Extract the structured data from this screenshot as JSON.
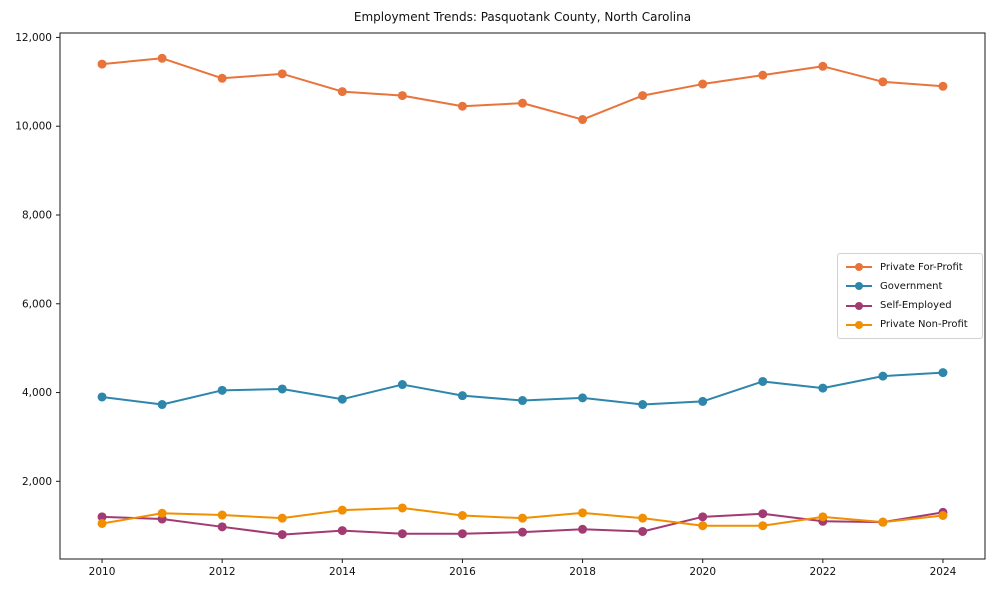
{
  "title": "Employment Trends: Pasquotank County, North Carolina",
  "chart_data": {
    "type": "line",
    "title": "Employment Trends: Pasquotank County, North Carolina",
    "x": [
      2010,
      2011,
      2012,
      2013,
      2014,
      2015,
      2016,
      2017,
      2018,
      2019,
      2020,
      2021,
      2022,
      2023,
      2024
    ],
    "series": [
      {
        "name": "Private For-Profit",
        "color": "#E8743C",
        "values": [
          11400,
          11530,
          11080,
          11180,
          10780,
          10690,
          10450,
          10520,
          10150,
          10690,
          10950,
          11150,
          11350,
          11000,
          10900
        ]
      },
      {
        "name": "Government",
        "color": "#2E86AB",
        "values": [
          3900,
          3730,
          4050,
          4080,
          3850,
          4180,
          3930,
          3820,
          3880,
          3730,
          3800,
          4250,
          4100,
          4370,
          4450
        ]
      },
      {
        "name": "Self-Employed",
        "color": "#A23B72",
        "values": [
          1200,
          1150,
          975,
          800,
          890,
          820,
          820,
          855,
          920,
          870,
          1200,
          1270,
          1100,
          1080,
          1300
        ]
      },
      {
        "name": "Private Non-Profit",
        "color": "#F18F01",
        "values": [
          1050,
          1280,
          1240,
          1170,
          1350,
          1400,
          1230,
          1170,
          1290,
          1170,
          1000,
          1000,
          1200,
          1080,
          1230
        ]
      }
    ],
    "xlabel": "",
    "ylabel": "",
    "xlim": [
      2009.3,
      2024.7
    ],
    "ylim": [
      250,
      12100
    ],
    "xticks": {
      "values": [
        2010,
        2012,
        2014,
        2016,
        2018,
        2020,
        2022,
        2024
      ],
      "labels": [
        "2010",
        "2012",
        "2014",
        "2016",
        "2018",
        "2020",
        "2022",
        "2024"
      ]
    },
    "yticks": {
      "values": [
        2000,
        4000,
        6000,
        8000,
        10000,
        12000
      ],
      "labels": [
        "2,000",
        "4,000",
        "6,000",
        "8,000",
        "10,000",
        "12,000"
      ]
    },
    "grid": false,
    "legend": {
      "position": "center-right",
      "entries": [
        "Private For-Profit",
        "Government",
        "Self-Employed",
        "Private Non-Profit"
      ]
    }
  }
}
